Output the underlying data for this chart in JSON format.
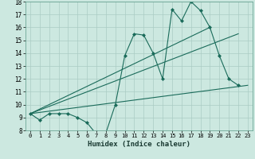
{
  "title": "",
  "xlabel": "Humidex (Indice chaleur)",
  "bg_color": "#cce8e0",
  "line_color": "#1a6b5a",
  "grid_color": "#aaccc4",
  "xlim": [
    -0.5,
    23.5
  ],
  "ylim": [
    8,
    18
  ],
  "xticks": [
    0,
    1,
    2,
    3,
    4,
    5,
    6,
    7,
    8,
    9,
    10,
    11,
    12,
    13,
    14,
    15,
    16,
    17,
    18,
    19,
    20,
    21,
    22,
    23
  ],
  "yticks": [
    8,
    9,
    10,
    11,
    12,
    13,
    14,
    15,
    16,
    17,
    18
  ],
  "line1_x": [
    0,
    1,
    2,
    3,
    4,
    5,
    6,
    7,
    8,
    9,
    10,
    11,
    12,
    13,
    14,
    15,
    16,
    17,
    18,
    19,
    20,
    21,
    22
  ],
  "line1_y": [
    9.3,
    8.8,
    9.3,
    9.3,
    9.3,
    9.0,
    8.6,
    7.7,
    7.8,
    10.0,
    13.8,
    15.5,
    15.4,
    14.0,
    12.0,
    17.4,
    16.5,
    18.0,
    17.3,
    16.0,
    13.8,
    12.0,
    11.5
  ],
  "line2_x": [
    0,
    23
  ],
  "line2_y": [
    9.3,
    11.5
  ],
  "line3_x": [
    0,
    19
  ],
  "line3_y": [
    9.3,
    16.0
  ],
  "line4_x": [
    0,
    22
  ],
  "line4_y": [
    9.3,
    15.5
  ]
}
